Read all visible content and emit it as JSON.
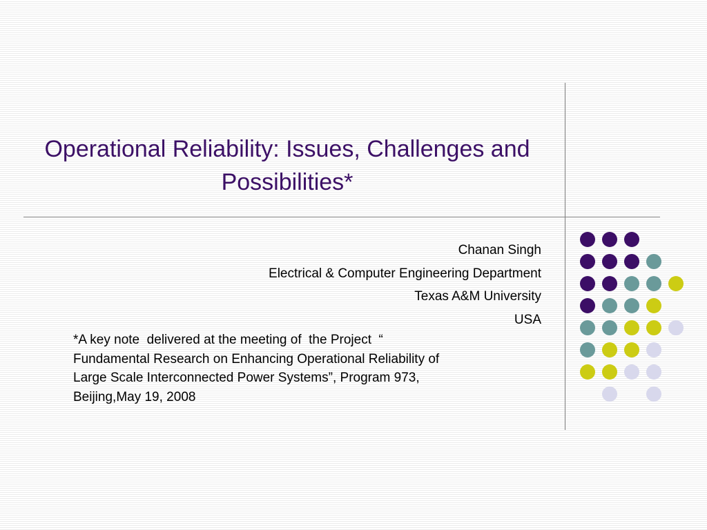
{
  "slide": {
    "title": "Operational Reliability: Issues, Challenges and Possibilities*",
    "author": "Chanan Singh",
    "department": "Electrical & Computer Engineering Department",
    "university": "Texas A&M University",
    "country": "USA",
    "footnote": "*A key note  delivered at the meeting of  the Project  “\nFundamental Research on Enhancing Operational Reliability of\nLarge Scale Interconnected Power Systems”, Program 973,\nBeijing,May 19, 2008"
  },
  "theme": {
    "title_color": "#3c1066",
    "dot_colors": {
      "purple": "#3c0e66",
      "teal": "#6a9a9a",
      "olive": "#cccc14",
      "lavender": "#d8d8ec"
    }
  },
  "decoration": {
    "dot_grid": [
      [
        "purple",
        "purple",
        "purple",
        null,
        null
      ],
      [
        "purple",
        "purple",
        "purple",
        "teal",
        null
      ],
      [
        "purple",
        "purple",
        "teal",
        "teal",
        "olive"
      ],
      [
        "purple",
        "teal",
        "teal",
        "olive",
        null
      ],
      [
        "teal",
        "teal",
        "olive",
        "olive",
        "lavender"
      ],
      [
        "teal",
        "olive",
        "olive",
        "lavender",
        null
      ],
      [
        "olive",
        "olive",
        "lavender",
        "lavender",
        null
      ],
      [
        null,
        "lavender",
        null,
        "lavender",
        null
      ]
    ]
  }
}
